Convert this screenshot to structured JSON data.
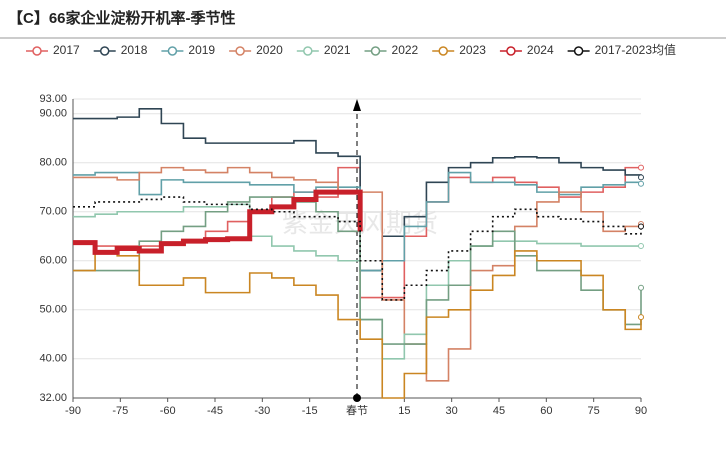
{
  "chart_data": {
    "type": "line",
    "title": "【C】66家企业淀粉开机率-季节性",
    "watermark": "紫金天风期货",
    "step": true,
    "grid": true,
    "x": [
      -90,
      -83,
      -76,
      -69,
      -62,
      -55,
      -48,
      -41,
      -34,
      -27,
      -20,
      -13,
      -6,
      1,
      8,
      15,
      22,
      29,
      36,
      43,
      50,
      57,
      64,
      71,
      78,
      85,
      90
    ],
    "xlim": [
      -90,
      90
    ],
    "xticks": [
      -90,
      -75,
      -60,
      -45,
      -30,
      -15,
      {
        "value": 0,
        "label": "春节"
      },
      15,
      30,
      45,
      60,
      75,
      90
    ],
    "ylim": [
      32,
      93
    ],
    "yticks": [
      {
        "value": 32,
        "label": "32.00"
      },
      {
        "value": 40,
        "label": "40.00"
      },
      {
        "value": 50,
        "label": "50.00"
      },
      {
        "value": 60,
        "label": "60.00"
      },
      {
        "value": 70,
        "label": "70.00"
      },
      {
        "value": 80,
        "label": "80.00"
      },
      {
        "value": 90,
        "label": "90.00"
      },
      {
        "value": 93,
        "label": "93.00"
      }
    ],
    "series": [
      {
        "name": "2017",
        "color": "#e06060",
        "values": [
          64,
          63,
          63,
          63,
          63.5,
          64,
          66,
          68,
          70,
          73,
          74,
          73,
          79,
          52.5,
          52.5,
          65,
          72,
          77,
          76,
          77,
          76,
          75,
          73,
          74,
          75,
          79,
          79
        ]
      },
      {
        "name": "2018",
        "color": "#2f4554",
        "values": [
          89,
          89,
          89.3,
          91,
          88,
          85,
          84,
          84,
          84,
          84,
          84.5,
          82,
          81.3,
          58,
          65,
          69,
          76,
          79,
          80,
          81,
          81.2,
          81,
          80,
          79,
          78.5,
          77.5,
          77
        ]
      },
      {
        "name": "2019",
        "color": "#61a0a8",
        "values": [
          77.5,
          78,
          78,
          73.5,
          76.5,
          76,
          76,
          76,
          75.5,
          75.5,
          74,
          75,
          75,
          58,
          60,
          67,
          72,
          78,
          76,
          76,
          75.5,
          74,
          73.5,
          75,
          75.5,
          76,
          75.7
        ]
      },
      {
        "name": "2020",
        "color": "#d48265",
        "values": [
          77,
          77,
          76.5,
          78,
          79,
          78.5,
          78,
          79,
          78,
          77,
          76.5,
          76,
          74,
          74,
          52,
          43,
          35.5,
          42,
          58,
          59,
          67,
          72,
          74,
          70,
          66,
          67,
          67.5
        ]
      },
      {
        "name": "2021",
        "color": "#91c7ae",
        "values": [
          69,
          69.5,
          70,
          70,
          70,
          71,
          71,
          71.5,
          65,
          63,
          62,
          61,
          60,
          48,
          40,
          45,
          55,
          60,
          63,
          64,
          64,
          63.5,
          63.5,
          63,
          63,
          63,
          63
        ]
      },
      {
        "name": "2022",
        "color": "#749f83",
        "values": [
          58,
          58,
          58,
          64,
          66,
          67,
          70,
          72,
          73,
          73,
          72,
          70,
          66,
          48,
          43,
          43,
          52,
          55,
          63,
          66,
          61,
          58,
          58,
          54,
          50,
          47,
          54.5
        ]
      },
      {
        "name": "2023",
        "color": "#ca8622",
        "values": [
          58,
          62,
          61,
          55,
          55,
          56.5,
          53.5,
          53.5,
          57.5,
          56.5,
          55,
          53,
          48,
          44,
          32,
          37,
          48.5,
          50,
          54,
          57,
          62,
          60,
          60,
          57,
          50,
          46,
          48.5
        ]
      },
      {
        "name": "2024",
        "color": "#c8202a",
        "width": 5,
        "values": [
          63.7,
          61.7,
          62.5,
          62,
          63.5,
          64,
          64.3,
          64.5,
          70,
          71,
          72.5,
          74,
          74,
          66,
          null,
          null,
          null,
          null,
          null,
          null,
          null,
          null,
          null,
          null,
          null,
          null,
          null
        ]
      },
      {
        "name": "2017-2023均值",
        "color": "#111111",
        "dash": "2,3",
        "values": [
          71,
          72,
          72,
          72.5,
          73,
          72,
          71.5,
          71.5,
          70.5,
          70,
          69,
          69,
          68,
          60,
          52,
          55,
          58,
          62,
          66,
          69,
          70.5,
          69,
          68.5,
          68,
          67,
          65.5,
          67
        ]
      }
    ]
  }
}
